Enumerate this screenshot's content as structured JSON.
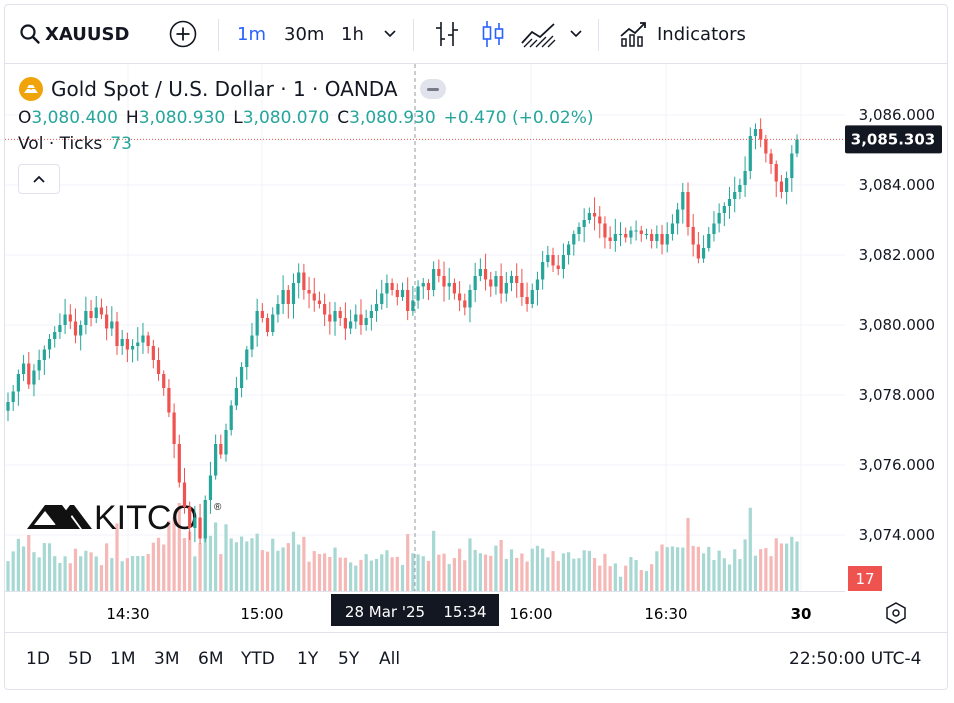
{
  "toolbar": {
    "symbol": "XAUUSD",
    "intervals": [
      "1m",
      "30m",
      "1h"
    ],
    "active_interval": "1m",
    "indicators_label": "Indicators"
  },
  "legend": {
    "title": "Gold Spot / U.S. Dollar · 1 · OANDA",
    "o_label": "O",
    "o_value": "3,080.400",
    "h_label": "H",
    "h_value": "3,080.930",
    "l_label": "L",
    "l_value": "3,080.070",
    "c_label": "C",
    "c_value": "3,080.930",
    "change": "+0.470 (+0.02%)",
    "vol_label": "Vol · Ticks",
    "vol_value": "73"
  },
  "price_axis": {
    "ticks": [
      "3,086.000",
      "3,084.000",
      "3,082.000",
      "3,080.000",
      "3,078.000",
      "3,076.000",
      "3,074.000"
    ],
    "current_price": "3,085.303",
    "volume_badge": "17"
  },
  "time_axis": {
    "ticks": [
      "14:30",
      "15:00",
      "16:00",
      "16:30",
      "30"
    ],
    "crosshair_label_date": "28 Mar '25",
    "crosshair_label_time": "15:34"
  },
  "watermark": {
    "text": "KITCO",
    "registered": "®"
  },
  "bottom": {
    "ranges": [
      "1D",
      "5D",
      "1M",
      "3M",
      "6M",
      "YTD",
      "1Y",
      "5Y",
      "All"
    ],
    "clock": "22:50:00 UTC-4"
  },
  "colors": {
    "up": "#26a69a",
    "down": "#ef5350",
    "accent": "#2962ff",
    "vol_up": "#a7d8d3",
    "vol_down": "#f5b8b6",
    "logo": "#f0a30a"
  },
  "chart_data": {
    "type": "candlestick",
    "symbol": "XAUUSD",
    "interval": "1m",
    "ylim": [
      3072.5,
      3087.0
    ],
    "closes": [
      3077.8,
      3078.1,
      3078.6,
      3078.9,
      3078.3,
      3078.7,
      3079.0,
      3079.3,
      3079.6,
      3079.8,
      3080.0,
      3080.3,
      3080.1,
      3079.7,
      3080.0,
      3080.4,
      3080.2,
      3080.5,
      3080.3,
      3079.9,
      3080.1,
      3079.4,
      3079.6,
      3079.3,
      3079.4,
      3079.5,
      3079.7,
      3079.4,
      3079.0,
      3078.6,
      3078.2,
      3077.5,
      3076.6,
      3075.5,
      3074.8,
      3074.2,
      3074.5,
      3073.9,
      3075.0,
      3075.7,
      3076.6,
      3076.3,
      3077.0,
      3077.7,
      3078.2,
      3078.8,
      3079.3,
      3079.7,
      3080.4,
      3080.2,
      3079.8,
      3080.3,
      3080.6,
      3081.0,
      3080.6,
      3081.2,
      3081.5,
      3081.0,
      3080.9,
      3080.7,
      3080.6,
      3080.3,
      3080.1,
      3080.4,
      3080.2,
      3079.9,
      3080.1,
      3080.3,
      3080.0,
      3080.2,
      3080.4,
      3080.6,
      3080.9,
      3081.2,
      3081.0,
      3080.8,
      3081.0,
      3080.4,
      3080.7,
      3081.1,
      3081.2,
      3081.0,
      3081.6,
      3081.4,
      3081.1,
      3081.2,
      3080.9,
      3080.7,
      3080.5,
      3081.0,
      3081.4,
      3081.6,
      3081.3,
      3081.1,
      3081.4,
      3080.9,
      3081.2,
      3081.4,
      3081.2,
      3080.8,
      3080.6,
      3081.0,
      3081.3,
      3081.8,
      3082.0,
      3081.7,
      3081.6,
      3082.0,
      3082.3,
      3082.6,
      3082.8,
      3083.0,
      3083.2,
      3083.1,
      3082.9,
      3082.5,
      3082.4,
      3082.6,
      3082.6,
      3082.5,
      3082.7,
      3082.7,
      3082.6,
      3082.6,
      3082.4,
      3082.6,
      3082.3,
      3082.6,
      3082.9,
      3083.3,
      3083.8,
      3082.8,
      3082.3,
      3081.9,
      3082.2,
      3082.6,
      3082.9,
      3083.2,
      3083.4,
      3083.6,
      3083.8,
      3084.0,
      3084.4,
      3085.4,
      3085.6,
      3085.3,
      3084.9,
      3084.6,
      3084.1,
      3083.8,
      3084.2,
      3084.9,
      3085.3
    ]
  }
}
